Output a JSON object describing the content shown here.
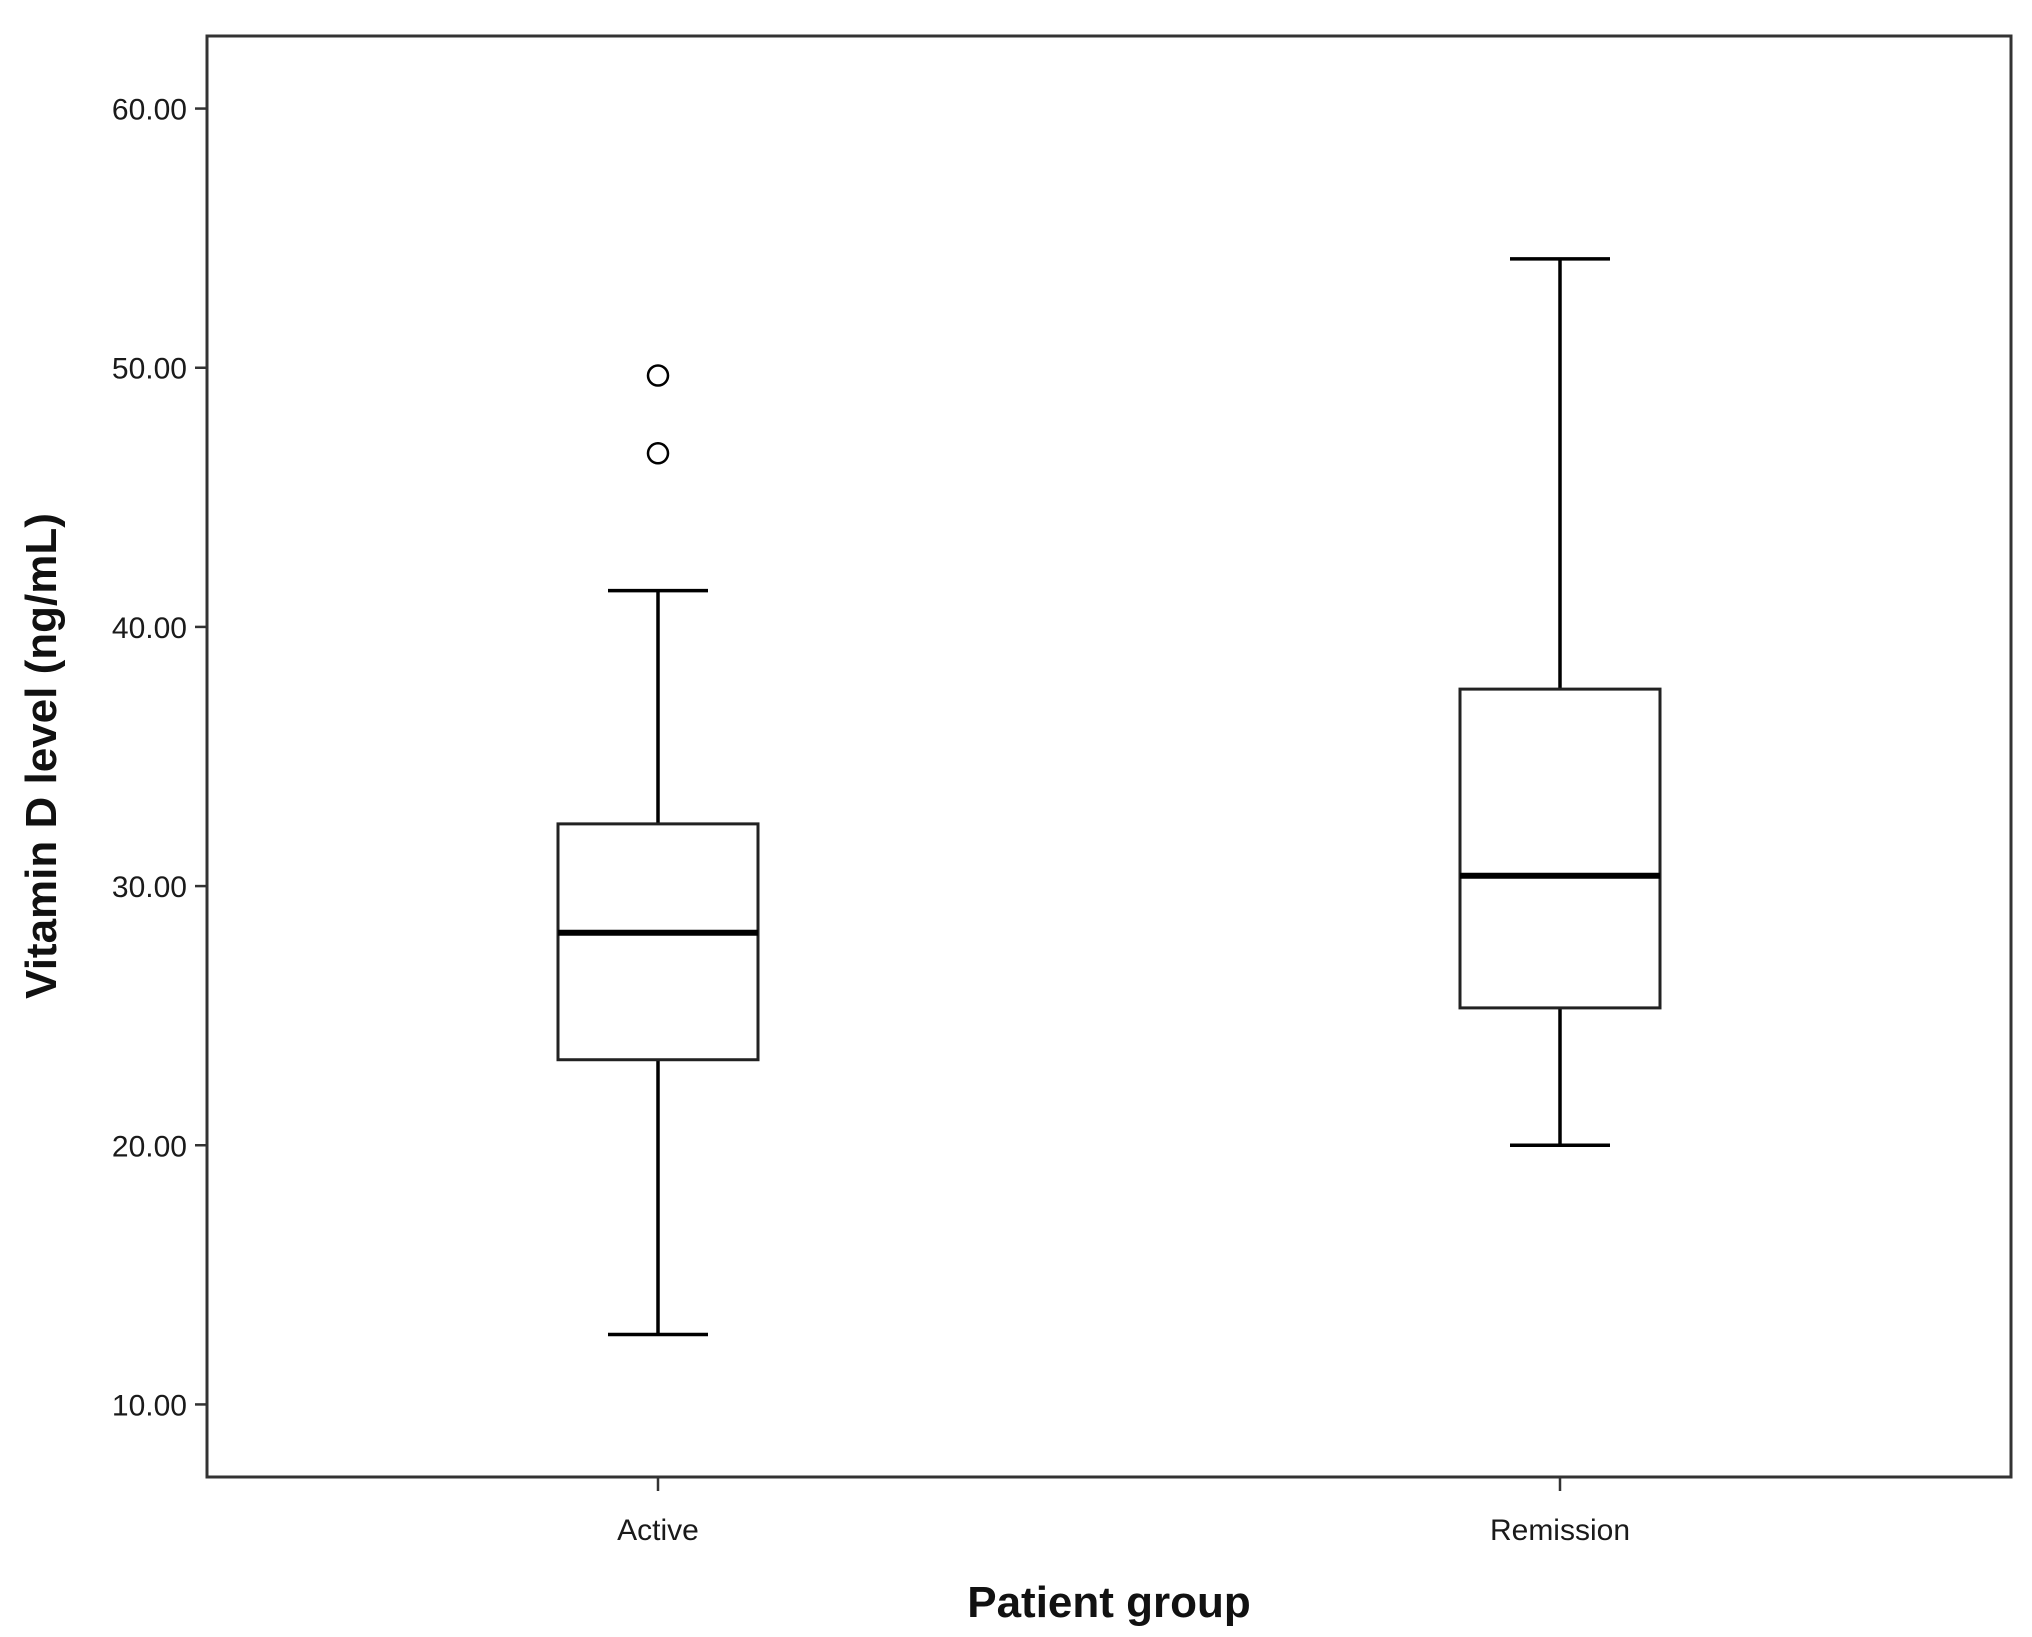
{
  "chart_data": {
    "type": "boxplot",
    "xlabel": "Patient group",
    "ylabel": "Vitamin D level (ng/mL)",
    "ylim": [
      7.2,
      62.8
    ],
    "yticks": [
      "10.00",
      "20.00",
      "30.00",
      "40.00",
      "50.00",
      "60.00"
    ],
    "ytick_values": [
      10,
      20,
      30,
      40,
      50,
      60
    ],
    "categories": [
      "Active",
      "Remission"
    ],
    "boxes": [
      {
        "category": "Active",
        "whisker_low": 12.7,
        "q1": 23.3,
        "median": 28.2,
        "q3": 32.4,
        "whisker_high": 41.4,
        "outliers": [
          49.7,
          46.7
        ]
      },
      {
        "category": "Remission",
        "whisker_low": 20.0,
        "q1": 25.3,
        "median": 30.4,
        "q3": 37.6,
        "whisker_high": 54.2,
        "outliers": []
      }
    ],
    "grid": false,
    "legend": "none"
  }
}
